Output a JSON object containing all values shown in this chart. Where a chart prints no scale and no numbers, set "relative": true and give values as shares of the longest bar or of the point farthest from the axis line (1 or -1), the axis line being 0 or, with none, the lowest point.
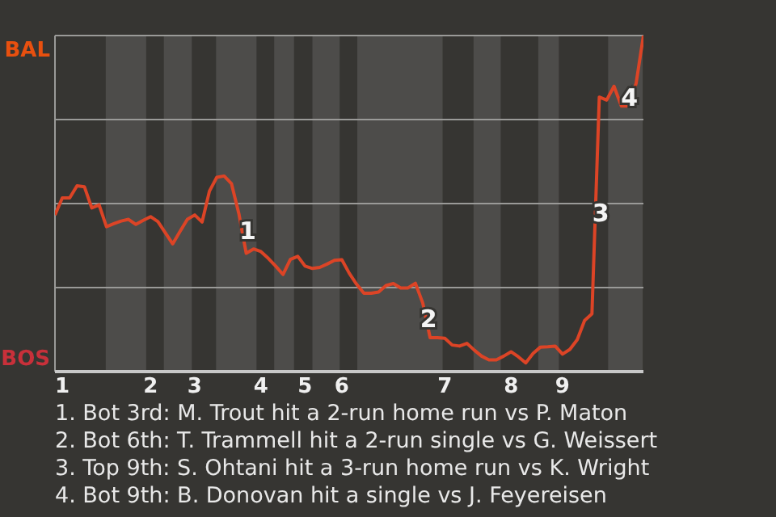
{
  "chart_data": {
    "type": "line",
    "relative": true,
    "categories": [
      null,
      "1",
      null,
      null,
      null,
      null,
      null,
      null,
      null,
      null,
      null,
      null,
      null,
      "2",
      null,
      null,
      null,
      null,
      null,
      "3",
      null,
      null,
      null,
      null,
      null,
      null,
      null,
      null,
      "4",
      null,
      null,
      null,
      null,
      null,
      "5",
      null,
      null,
      null,
      null,
      "6",
      null,
      null,
      null,
      null,
      null,
      null,
      null,
      null,
      null,
      null,
      null,
      null,
      null,
      "7",
      null,
      null,
      null,
      null,
      null,
      null,
      null,
      null,
      "8",
      null,
      null,
      null,
      null,
      null,
      null,
      "9",
      null,
      null,
      null,
      null,
      null,
      null,
      null,
      null,
      null,
      null,
      null
    ],
    "marker": "none",
    "line_style": "solid",
    "series": [
      {
        "color": "#dc4426",
        "values": [
          0.466,
          0.517,
          0.517,
          0.553,
          0.55,
          0.487,
          0.496,
          0.431,
          0.44,
          0.448,
          0.453,
          0.438,
          0.45,
          0.461,
          0.446,
          0.413,
          0.38,
          0.417,
          0.453,
          0.466,
          0.445,
          0.537,
          0.578,
          0.582,
          0.559,
          0.47,
          0.352,
          0.365,
          0.357,
          0.337,
          0.314,
          0.289,
          0.334,
          0.343,
          0.314,
          0.307,
          0.31,
          0.32,
          0.331,
          0.333,
          0.293,
          0.26,
          0.233,
          0.233,
          0.237,
          0.256,
          0.262,
          0.249,
          0.249,
          0.263,
          0.204,
          0.101,
          0.101,
          0.099,
          0.079,
          0.076,
          0.084,
          0.064,
          0.046,
          0.035,
          0.035,
          0.046,
          0.059,
          0.044,
          0.026,
          0.054,
          0.073,
          0.074,
          0.076,
          0.052,
          0.066,
          0.095,
          0.152,
          0.172,
          0.817,
          0.808,
          0.849,
          0.79,
          0.79,
          0.857,
          1
        ]
      }
    ],
    "ref_lines": [
      {
        "axis": "y",
        "value": 0.25,
        "color": "#9a9a98"
      },
      {
        "axis": "y",
        "value": 0.5,
        "color": "#9a9a98"
      },
      {
        "axis": "y",
        "value": 0.75,
        "color": "#9a9a98"
      },
      {
        "axis": "y",
        "value": 1,
        "color": "#9a9a98"
      }
    ],
    "annotations": [
      "BAL",
      "BOS",
      {
        "text": "1",
        "y": 0.424
      },
      {
        "text": "2",
        "y": 0.16
      },
      {
        "text": "3",
        "y": 0.477
      },
      {
        "text": "4",
        "y": 0.819
      },
      "1. Bot 3rd: M. Trout hit a 2-run home run vs P. Maton",
      "2. Bot 6th: T. Trammell hit a 2-run single vs G. Weissert",
      "3. Top 9th: S. Ohtani hit a 3-run home run vs K. Wright",
      "4. Bot 9th: B. Donovan hit a single vs J. Feyereisen"
    ]
  }
}
